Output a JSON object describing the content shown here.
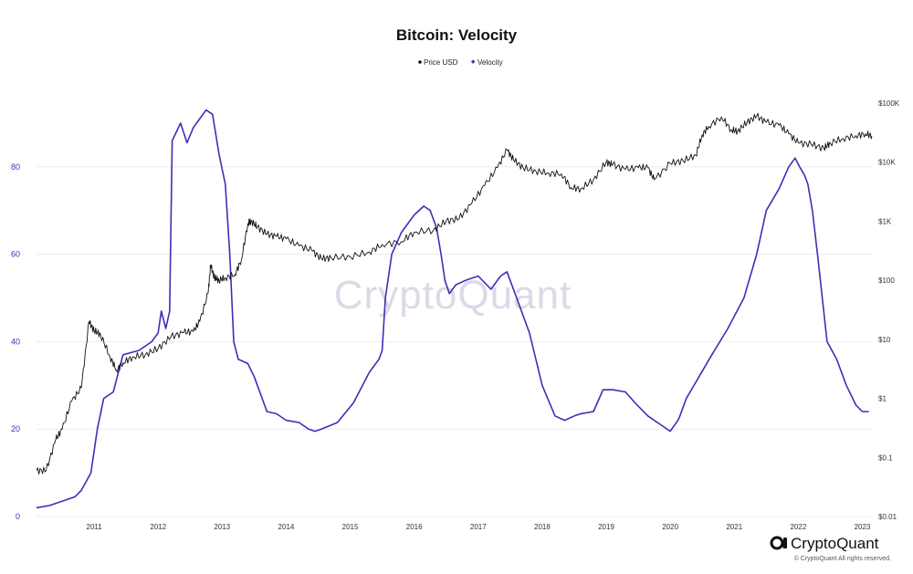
{
  "chart_data": {
    "type": "line",
    "title": "Bitcoin: Velocity",
    "legend": [
      {
        "name": "Price USD",
        "color": "#111111",
        "marker": "dot"
      },
      {
        "name": "Velocity",
        "color": "#3d2fb8",
        "marker": "diamond"
      }
    ],
    "legend_position": "top-center",
    "x_ticks": [
      "2011",
      "2012",
      "2013",
      "2014",
      "2015",
      "2016",
      "2017",
      "2018",
      "2019",
      "2020",
      "2021",
      "2022",
      "2023"
    ],
    "x_range": [
      2010.6,
      2023.65
    ],
    "y_left": {
      "label": "Velocity",
      "range": [
        0,
        100
      ],
      "ticks": [
        "0",
        "20",
        "40",
        "60",
        "80"
      ],
      "tick_values": [
        0,
        20,
        40,
        60,
        80
      ]
    },
    "y_right": {
      "label": "Price USD",
      "scale": "log",
      "range": [
        0.01,
        250000
      ],
      "ticks": [
        "$0.01",
        "$0.1",
        "$1",
        "$10",
        "$100",
        "$1K",
        "$10K",
        "$100K"
      ],
      "tick_values": [
        0.01,
        0.1,
        1,
        10,
        100,
        1000,
        10000,
        100000
      ]
    },
    "grid": true,
    "series": [
      {
        "name": "Velocity",
        "axis": "left",
        "color": "#3d2fb8",
        "x": [
          2010.6,
          2010.8,
          2011.0,
          2011.2,
          2011.3,
          2011.45,
          2011.55,
          2011.65,
          2011.8,
          2011.95,
          2012.2,
          2012.4,
          2012.5,
          2012.55,
          2012.62,
          2012.68,
          2012.72,
          2012.85,
          2012.95,
          2013.05,
          2013.15,
          2013.25,
          2013.35,
          2013.45,
          2013.55,
          2013.62,
          2013.68,
          2013.75,
          2013.9,
          2014.0,
          2014.2,
          2014.35,
          2014.5,
          2014.7,
          2014.85,
          2014.95,
          2015.05,
          2015.3,
          2015.55,
          2015.8,
          2015.95,
          2016.0,
          2016.05,
          2016.15,
          2016.3,
          2016.5,
          2016.65,
          2016.75,
          2016.85,
          2016.92,
          2016.98,
          2017.05,
          2017.15,
          2017.3,
          2017.5,
          2017.7,
          2017.85,
          2017.95,
          2018.1,
          2018.3,
          2018.5,
          2018.7,
          2018.85,
          2019.0,
          2019.1,
          2019.3,
          2019.45,
          2019.6,
          2019.8,
          2019.95,
          2020.15,
          2020.35,
          2020.5,
          2020.62,
          2020.65,
          2020.75,
          2020.95,
          2021.15,
          2021.4,
          2021.65,
          2021.85,
          2022.0,
          2022.2,
          2022.35,
          2022.45,
          2022.52,
          2022.6,
          2022.65,
          2022.72,
          2022.8,
          2022.95,
          2023.1,
          2023.25,
          2023.4,
          2023.5,
          2023.6
        ],
        "values": [
          2,
          2.5,
          3.5,
          4.5,
          6,
          10,
          20,
          27,
          28.5,
          37,
          38,
          40,
          42,
          47,
          43,
          47,
          86,
          90,
          85.5,
          89,
          91,
          93,
          92,
          83,
          76,
          60,
          40,
          36,
          35,
          32,
          24,
          23.5,
          22,
          21.5,
          20,
          19.5,
          20,
          21.5,
          26,
          33,
          36,
          38,
          50,
          60,
          65,
          69,
          71,
          70,
          66,
          60,
          54,
          51,
          53,
          54,
          55,
          52,
          55,
          56,
          50,
          42,
          30,
          23,
          22,
          23,
          23.5,
          24,
          29,
          29,
          28.5,
          26,
          23,
          21,
          19.5,
          22,
          23,
          27,
          32,
          37,
          43,
          50,
          60,
          70,
          75,
          80,
          82,
          80,
          78,
          76,
          70,
          60,
          40,
          36,
          30,
          25.5,
          24,
          24
        ]
      },
      {
        "name": "Price USD",
        "axis": "right",
        "color": "#111111",
        "x": [
          2010.6,
          2010.75,
          2010.9,
          2011.0,
          2011.15,
          2011.3,
          2011.42,
          2011.5,
          2011.6,
          2011.75,
          2011.85,
          2011.95,
          2012.1,
          2012.3,
          2012.5,
          2012.7,
          2012.9,
          2013.05,
          2013.15,
          2013.28,
          2013.32,
          2013.38,
          2013.45,
          2013.55,
          2013.7,
          2013.8,
          2013.9,
          2013.95,
          2014.05,
          2014.2,
          2014.35,
          2014.5,
          2014.7,
          2014.9,
          2015.05,
          2015.2,
          2015.5,
          2015.8,
          2016.0,
          2016.3,
          2016.5,
          2016.8,
          2017.0,
          2017.2,
          2017.4,
          2017.6,
          2017.8,
          2017.95,
          2018.05,
          2018.2,
          2018.4,
          2018.6,
          2018.8,
          2018.95,
          2019.1,
          2019.3,
          2019.5,
          2019.6,
          2019.8,
          2020.0,
          2020.15,
          2020.25,
          2020.5,
          2020.7,
          2020.9,
          2021.0,
          2021.1,
          2021.3,
          2021.45,
          2021.55,
          2021.7,
          2021.85,
          2022.0,
          2022.2,
          2022.35,
          2022.5,
          2022.7,
          2022.9,
          2023.0,
          2023.2,
          2023.4,
          2023.55,
          2023.65
        ],
        "values": [
          0.06,
          0.06,
          0.2,
          0.3,
          0.9,
          1.5,
          20,
          14,
          12,
          5,
          3,
          4,
          5,
          5.5,
          7,
          11,
          13,
          13.5,
          20,
          60,
          180,
          110,
          100,
          110,
          125,
          220,
          900,
          1000,
          800,
          600,
          550,
          500,
          380,
          320,
          230,
          240,
          250,
          300,
          400,
          450,
          650,
          700,
          1000,
          1100,
          2000,
          4000,
          8000,
          16000,
          11000,
          8000,
          7000,
          6500,
          6300,
          3700,
          3500,
          5000,
          10000,
          9000,
          7500,
          8000,
          8000,
          5000,
          9500,
          10500,
          13000,
          29000,
          40000,
          58000,
          35000,
          33000,
          47000,
          60000,
          47000,
          42000,
          30000,
          21000,
          20000,
          17000,
          21000,
          25000,
          28000,
          30000,
          28000
        ]
      }
    ]
  },
  "watermark": "CryptoQuant",
  "brand": {
    "name": "CryptoQuant",
    "copyright": "© CryptoQuant All rights reserved."
  }
}
